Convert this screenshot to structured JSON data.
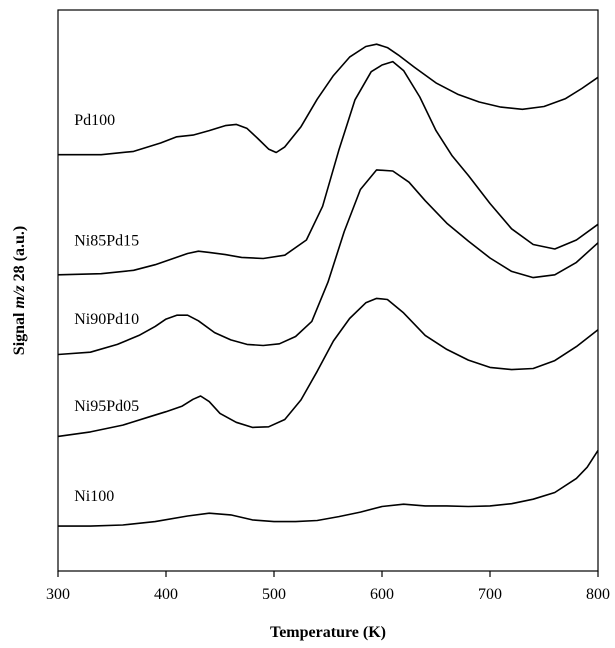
{
  "chart_data": {
    "type": "line",
    "title": "",
    "xlabel": "Temperature (K)",
    "ylabel_parts": [
      "Signal ",
      "m/z",
      " 28 (a.u.)"
    ],
    "xlim": [
      300,
      800
    ],
    "ylim": [
      0,
      100
    ],
    "x_ticks": [
      300,
      400,
      500,
      600,
      700,
      800
    ],
    "y_ticks_labeled": false,
    "grid": false,
    "legend": "none",
    "line_color": "#000000",
    "annotations": [
      {
        "series": "Pd100",
        "text": "Pd100",
        "x": 315,
        "y": 79.5
      },
      {
        "series": "Ni85Pd15",
        "text": "Ni85Pd15",
        "x": 315,
        "y": 58
      },
      {
        "series": "Ni90Pd10",
        "text": "Ni90Pd10",
        "x": 315,
        "y": 44
      },
      {
        "series": "Ni95Pd05",
        "text": "Ni95Pd05",
        "x": 315,
        "y": 28.5
      },
      {
        "series": "Ni100",
        "text": "Ni100",
        "x": 315,
        "y": 12.5
      }
    ],
    "series": [
      {
        "name": "Pd100",
        "x": [
          300,
          340,
          370,
          395,
          410,
          425,
          440,
          455,
          465,
          475,
          485,
          495,
          502,
          510,
          525,
          540,
          555,
          570,
          585,
          595,
          605,
          615,
          630,
          650,
          670,
          690,
          710,
          730,
          750,
          770,
          785,
          800
        ],
        "y": [
          74.2,
          74.2,
          74.8,
          76.3,
          77.4,
          77.7,
          78.5,
          79.4,
          79.6,
          78.9,
          77.1,
          75.2,
          74.6,
          75.6,
          79.2,
          84.1,
          88.3,
          91.6,
          93.5,
          93.9,
          93.3,
          92.0,
          89.8,
          87.0,
          85.0,
          83.6,
          82.7,
          82.3,
          82.8,
          84.2,
          86.0,
          88.0
        ]
      },
      {
        "name": "Ni85Pd15",
        "x": [
          300,
          340,
          370,
          390,
          405,
          420,
          430,
          440,
          455,
          470,
          490,
          510,
          530,
          545,
          560,
          575,
          590,
          600,
          610,
          620,
          635,
          650,
          665,
          680,
          700,
          720,
          740,
          760,
          780,
          800
        ],
        "y": [
          52.8,
          53.0,
          53.6,
          54.6,
          55.6,
          56.6,
          57.0,
          56.8,
          56.4,
          55.9,
          55.7,
          56.3,
          59.0,
          65.0,
          75.0,
          84.0,
          89.0,
          90.2,
          90.8,
          89.2,
          84.5,
          78.5,
          74.0,
          70.5,
          65.5,
          61.0,
          58.2,
          57.4,
          59.0,
          61.8
        ]
      },
      {
        "name": "Ni90Pd10",
        "x": [
          300,
          330,
          355,
          375,
          390,
          400,
          410,
          420,
          430,
          445,
          460,
          475,
          490,
          505,
          520,
          535,
          550,
          565,
          580,
          595,
          610,
          625,
          640,
          660,
          680,
          700,
          720,
          740,
          760,
          780,
          800
        ],
        "y": [
          38.6,
          39.0,
          40.4,
          42.0,
          43.6,
          44.9,
          45.6,
          45.6,
          44.6,
          42.5,
          41.2,
          40.4,
          40.2,
          40.5,
          41.8,
          44.5,
          51.5,
          60.5,
          68.0,
          71.5,
          71.3,
          69.3,
          66.0,
          62.0,
          58.8,
          55.8,
          53.4,
          52.3,
          52.8,
          55.0,
          58.5
        ]
      },
      {
        "name": "Ni95Pd05",
        "x": [
          300,
          330,
          360,
          385,
          400,
          415,
          425,
          432,
          440,
          450,
          465,
          480,
          495,
          510,
          525,
          540,
          555,
          570,
          585,
          595,
          605,
          620,
          640,
          660,
          680,
          700,
          720,
          740,
          760,
          780,
          800
        ],
        "y": [
          24.0,
          24.8,
          26.0,
          27.5,
          28.4,
          29.4,
          30.6,
          31.2,
          30.2,
          28.1,
          26.5,
          25.6,
          25.7,
          27.0,
          30.5,
          35.6,
          41.0,
          45.0,
          47.8,
          48.6,
          48.4,
          46.0,
          42.0,
          39.5,
          37.6,
          36.3,
          35.9,
          36.1,
          37.5,
          40.0,
          43.0
        ]
      },
      {
        "name": "Ni100",
        "x": [
          300,
          330,
          360,
          390,
          420,
          440,
          460,
          480,
          500,
          520,
          540,
          560,
          580,
          600,
          620,
          640,
          660,
          680,
          700,
          720,
          740,
          760,
          780,
          790,
          800
        ],
        "y": [
          8.0,
          8.0,
          8.2,
          8.8,
          9.8,
          10.3,
          10.0,
          9.1,
          8.8,
          8.8,
          9.0,
          9.7,
          10.5,
          11.5,
          11.9,
          11.6,
          11.6,
          11.5,
          11.6,
          12.0,
          12.8,
          14.0,
          16.5,
          18.5,
          21.5
        ]
      }
    ]
  }
}
